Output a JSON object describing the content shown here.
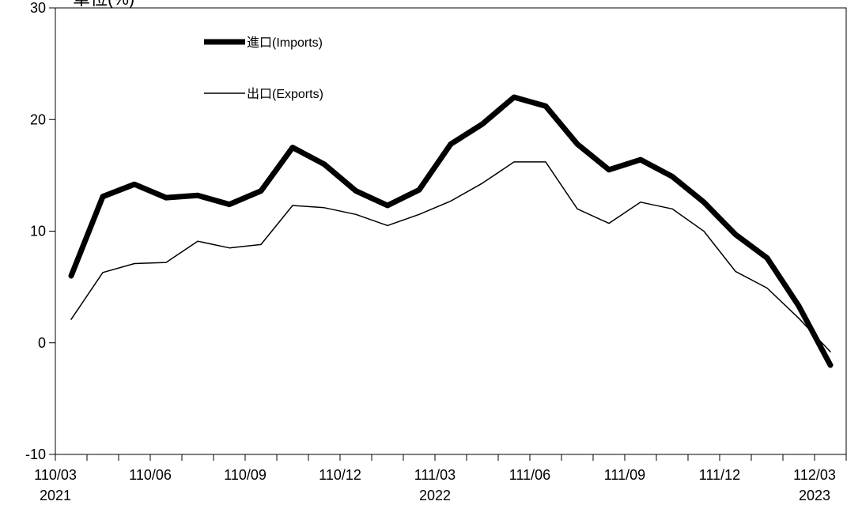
{
  "chart_data": {
    "type": "line",
    "title": "單位(%)",
    "ylim": [
      -10,
      30
    ],
    "yticks": [
      -10,
      0,
      10,
      20,
      30
    ],
    "x": [
      "110/03",
      "110/04",
      "110/05",
      "110/06",
      "110/07",
      "110/08",
      "110/09",
      "110/10",
      "110/11",
      "110/12",
      "111/01",
      "111/02",
      "111/03",
      "111/04",
      "111/05",
      "111/06",
      "111/07",
      "111/08",
      "111/09",
      "111/10",
      "111/11",
      "111/12",
      "112/01",
      "112/02",
      "112/03"
    ],
    "xtick_labels": [
      {
        "label": "110/03",
        "year": "2021"
      },
      {
        "label": "110/06",
        "year": ""
      },
      {
        "label": "110/09",
        "year": ""
      },
      {
        "label": "110/12",
        "year": ""
      },
      {
        "label": "111/03",
        "year": "2022"
      },
      {
        "label": "111/06",
        "year": ""
      },
      {
        "label": "111/09",
        "year": ""
      },
      {
        "label": "111/12",
        "year": ""
      },
      {
        "label": "112/03",
        "year": "2023"
      }
    ],
    "series": [
      {
        "name": "進口(Imports)",
        "color": "#000000",
        "style": "thick",
        "values": [
          6.0,
          13.1,
          14.2,
          13.0,
          13.2,
          12.4,
          13.6,
          17.5,
          16.0,
          13.6,
          12.3,
          13.7,
          17.8,
          19.6,
          22.0,
          21.2,
          17.8,
          15.5,
          16.4,
          14.9,
          12.6,
          9.7,
          7.6,
          3.3,
          -2.0
        ]
      },
      {
        "name": "出口(Exports)",
        "color": "#000000",
        "style": "thin",
        "values": [
          2.1,
          6.3,
          7.1,
          7.2,
          9.1,
          8.5,
          8.8,
          12.3,
          12.1,
          11.5,
          10.5,
          11.5,
          12.7,
          14.3,
          16.2,
          16.2,
          12.0,
          10.7,
          12.6,
          12.0,
          10.0,
          6.4,
          4.9,
          2.2,
          -0.8
        ]
      }
    ],
    "grid": false,
    "legend_position": "top-left"
  }
}
